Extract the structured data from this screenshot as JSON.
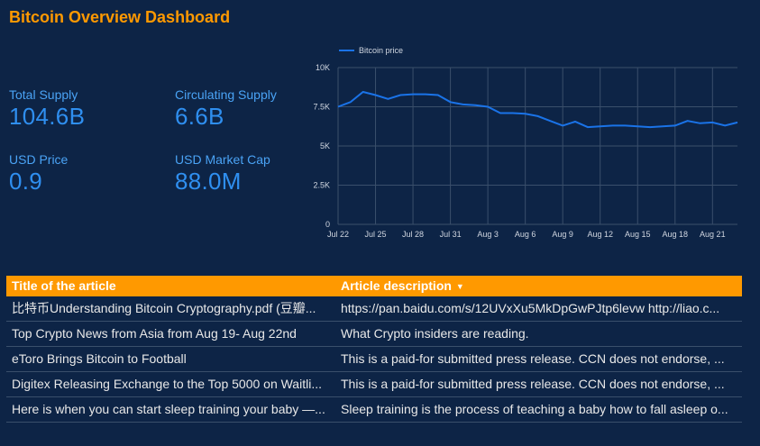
{
  "dashboard": {
    "title": "Bitcoin Overview Dashboard"
  },
  "kpis": [
    {
      "label": "Total Supply",
      "value": "104.6B"
    },
    {
      "label": "Circulating Supply",
      "value": "6.6B"
    },
    {
      "label": "USD Price",
      "value": "0.9"
    },
    {
      "label": "USD Market Cap",
      "value": "88.0M"
    }
  ],
  "chart_data": {
    "type": "line",
    "series": [
      {
        "name": "Bitcoin price",
        "values": [
          7500,
          7800,
          8450,
          8250,
          8000,
          8250,
          8300,
          8300,
          8250,
          7800,
          7650,
          7600,
          7500,
          7100,
          7100,
          7050,
          6900,
          6600,
          6300,
          6550,
          6200,
          6250,
          6300,
          6300,
          6250,
          6200,
          6250,
          6300,
          6600,
          6450,
          6500,
          6300,
          6500
        ]
      }
    ],
    "x_labels": [
      "Jul 22",
      "Jul 25",
      "Jul 28",
      "Jul 31",
      "Aug 3",
      "Aug 6",
      "Aug 9",
      "Aug 12",
      "Aug 15",
      "Aug 18",
      "Aug 21"
    ],
    "y_ticks": [
      "0",
      "2.5K",
      "5K",
      "7.5K",
      "10K"
    ],
    "ylim": [
      0,
      10000
    ],
    "grid": true,
    "legend": "top-left",
    "color": "#1a73e8"
  },
  "table": {
    "headers": [
      "Title of the article",
      "Article description"
    ],
    "rows": [
      [
        "比特币Understanding Bitcoin Cryptography.pdf (豆瓣...",
        "https://pan.baidu.com/s/12UVxXu5MkDpGwPJtp6levw http://liao.c..."
      ],
      [
        "Top Crypto News from Asia from Aug 19- Aug 22nd",
        "What Crypto insiders are reading."
      ],
      [
        "eToro Brings Bitcoin to Football",
        "This is a paid-for submitted press release. CCN does not endorse, ..."
      ],
      [
        "Digitex Releasing Exchange to the Top 5000 on Waitli...",
        "This is a paid-for submitted press release. CCN does not endorse, ..."
      ],
      [
        "Here is when you can start sleep training your baby —...",
        "Sleep training is the process of teaching a baby how to fall asleep o..."
      ]
    ]
  },
  "icons": {
    "sort": "sort-desc-icon"
  }
}
